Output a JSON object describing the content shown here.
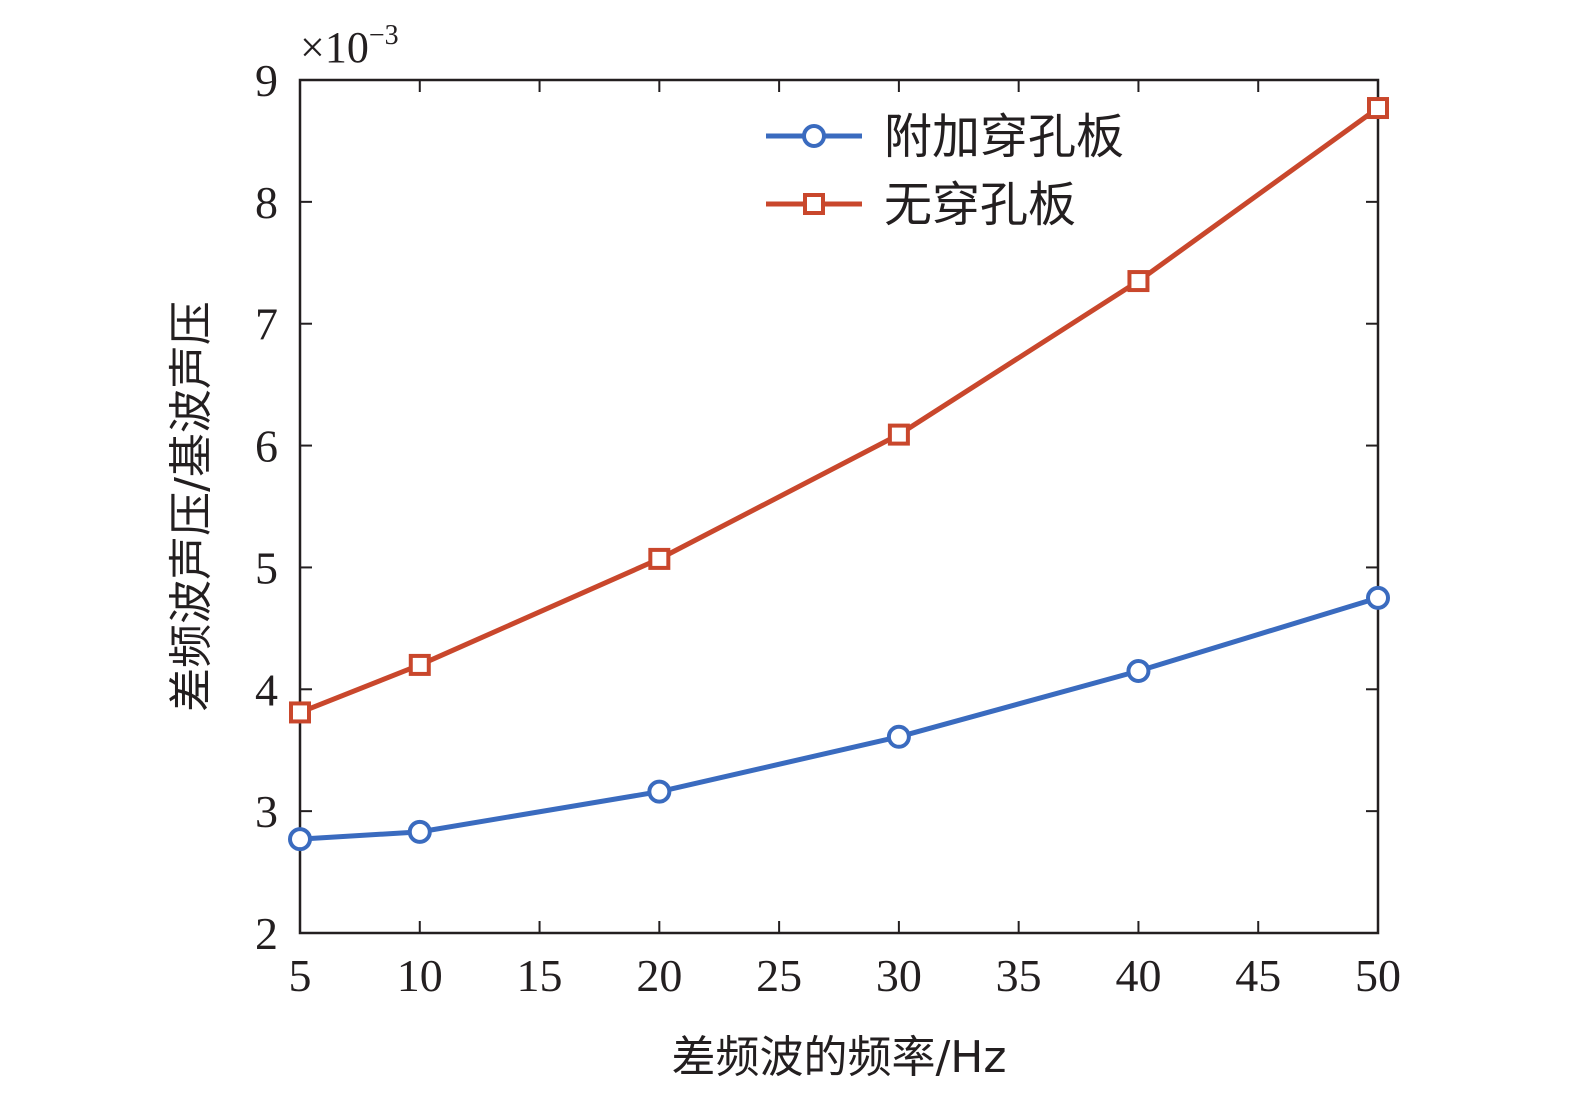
{
  "chart_data": {
    "type": "line",
    "xlabel": "差频波的频率/Hz",
    "ylabel": "差频波声压/基波声压",
    "xlim": [
      5,
      50
    ],
    "ylim": [
      2,
      9
    ],
    "xticks": [
      5,
      10,
      15,
      20,
      25,
      30,
      35,
      40,
      45,
      50
    ],
    "yticks": [
      2,
      3,
      4,
      5,
      6,
      7,
      8,
      9
    ],
    "y_multiplier": {
      "base": "×10",
      "exponent": "−3"
    },
    "legend_position": "top-right",
    "grid": false,
    "x": [
      5,
      10,
      20,
      30,
      40,
      50
    ],
    "series": [
      {
        "name": "附加穿孔板",
        "color": "#3a6bbf",
        "marker": "circle",
        "values": [
          2.77,
          2.83,
          3.16,
          3.61,
          4.15,
          4.75
        ]
      },
      {
        "name": "无穿孔板",
        "color": "#c9472c",
        "marker": "square",
        "values": [
          3.81,
          4.2,
          5.07,
          6.09,
          7.35,
          8.77
        ]
      }
    ]
  }
}
